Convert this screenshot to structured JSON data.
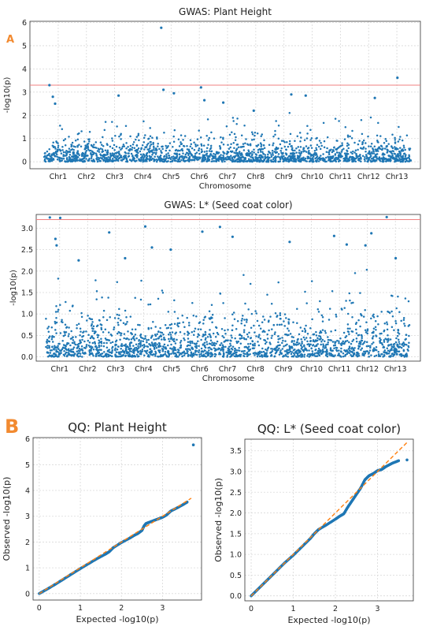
{
  "figure": {
    "panel_a_label": "A",
    "panel_b_label": "B"
  },
  "colors": {
    "points": "#1f77b4",
    "threshold": "#f08080",
    "qq_line": "#ff7f0e",
    "grid": "#d9d9d9",
    "panel_label": "#f28a30"
  },
  "chart_data": [
    {
      "type": "scatter",
      "subtype": "manhattan",
      "title": "GWAS: Plant Height",
      "xlabel": "Chromosome",
      "ylabel": "-log10(p)",
      "categories": [
        "Chr1",
        "Chr2",
        "Chr3",
        "Chr4",
        "Chr5",
        "Chr6",
        "Chr7",
        "Chr8",
        "Chr9",
        "Chr10",
        "Chr11",
        "Chr12",
        "Chr13"
      ],
      "ylim": [
        -0.3,
        6.05
      ],
      "yticks": [
        0,
        1,
        2,
        3,
        4,
        5,
        6
      ],
      "threshold": 3.3,
      "grid": true,
      "notable_points": [
        {
          "chromosome": "Chr5",
          "value": 5.77
        },
        {
          "chromosome": "Chr13",
          "value": 3.62
        },
        {
          "chromosome": "Chr1",
          "value": 3.3
        },
        {
          "chromosome": "Chr6",
          "value": 3.2
        },
        {
          "chromosome": "Chr5",
          "value": 3.1
        },
        {
          "chromosome": "Chr5",
          "value": 2.95
        },
        {
          "chromosome": "Chr10",
          "value": 2.85
        },
        {
          "chromosome": "Chr3",
          "value": 2.85
        },
        {
          "chromosome": "Chr1",
          "value": 2.8
        },
        {
          "chromosome": "Chr6",
          "value": 2.65
        },
        {
          "chromosome": "Chr7",
          "value": 2.55
        },
        {
          "chromosome": "Chr12",
          "value": 2.75
        },
        {
          "chromosome": "Chr1",
          "value": 2.5
        },
        {
          "chromosome": "Chr9",
          "value": 2.9
        },
        {
          "chromosome": "Chr8",
          "value": 2.2
        }
      ],
      "background_max": 2.3
    },
    {
      "type": "scatter",
      "subtype": "manhattan",
      "title": "GWAS: L* (Seed coat color)",
      "xlabel": "Chromosome",
      "ylabel": "-log10(p)",
      "categories": [
        "Chr1",
        "Chr2",
        "Chr3",
        "Chr4",
        "Chr5",
        "Chr6",
        "Chr7",
        "Chr8",
        "Chr9",
        "Chr10",
        "Chr11",
        "Chr12",
        "Chr13"
      ],
      "ylim": [
        -0.1,
        3.32
      ],
      "yticks": [
        0.0,
        0.5,
        1.0,
        1.5,
        2.0,
        2.5,
        3.0
      ],
      "threshold": 3.2,
      "grid": true,
      "notable_points": [
        {
          "chromosome": "Chr1",
          "value": 3.25
        },
        {
          "chromosome": "Chr1",
          "value": 3.24
        },
        {
          "chromosome": "Chr13",
          "value": 3.26
        },
        {
          "chromosome": "Chr4",
          "value": 3.04
        },
        {
          "chromosome": "Chr7",
          "value": 3.03
        },
        {
          "chromosome": "Chr6",
          "value": 2.92
        },
        {
          "chromosome": "Chr3",
          "value": 2.9
        },
        {
          "chromosome": "Chr12",
          "value": 2.88
        },
        {
          "chromosome": "Chr11",
          "value": 2.82
        },
        {
          "chromosome": "Chr7",
          "value": 2.8
        },
        {
          "chromosome": "Chr1",
          "value": 2.75
        },
        {
          "chromosome": "Chr9",
          "value": 2.68
        },
        {
          "chromosome": "Chr1",
          "value": 2.6
        },
        {
          "chromosome": "Chr11",
          "value": 2.62
        },
        {
          "chromosome": "Chr12",
          "value": 2.6
        },
        {
          "chromosome": "Chr4",
          "value": 2.55
        },
        {
          "chromosome": "Chr5",
          "value": 2.5
        },
        {
          "chromosome": "Chr3",
          "value": 2.3
        },
        {
          "chromosome": "Chr13",
          "value": 2.3
        },
        {
          "chromosome": "Chr2",
          "value": 2.25
        }
      ],
      "background_max": 2.05
    },
    {
      "type": "scatter",
      "subtype": "qq",
      "title": "QQ: Plant Height",
      "xlabel": "Expected -log10(p)",
      "ylabel": "Observed -log10(p)",
      "xlim": [
        -0.15,
        3.95
      ],
      "ylim": [
        -0.25,
        6.05
      ],
      "xticks": [
        0,
        1,
        2,
        3
      ],
      "yticks": [
        0,
        1,
        2,
        3,
        4,
        5,
        6
      ],
      "reference_line": {
        "x": [
          0,
          3.7
        ],
        "y": [
          0,
          3.7
        ]
      },
      "points": [
        [
          0.0,
          0.0
        ],
        [
          0.2,
          0.18
        ],
        [
          0.4,
          0.37
        ],
        [
          0.6,
          0.57
        ],
        [
          0.8,
          0.77
        ],
        [
          1.0,
          0.97
        ],
        [
          1.2,
          1.16
        ],
        [
          1.4,
          1.35
        ],
        [
          1.6,
          1.52
        ],
        [
          1.7,
          1.62
        ],
        [
          1.8,
          1.78
        ],
        [
          2.0,
          1.98
        ],
        [
          2.2,
          2.15
        ],
        [
          2.3,
          2.25
        ],
        [
          2.4,
          2.33
        ],
        [
          2.5,
          2.45
        ],
        [
          2.55,
          2.62
        ],
        [
          2.6,
          2.72
        ],
        [
          2.7,
          2.78
        ],
        [
          2.8,
          2.84
        ],
        [
          2.9,
          2.9
        ],
        [
          3.0,
          2.96
        ],
        [
          3.1,
          3.05
        ],
        [
          3.2,
          3.2
        ],
        [
          3.35,
          3.32
        ],
        [
          3.5,
          3.45
        ],
        [
          3.6,
          3.55
        ],
        [
          3.75,
          5.77
        ]
      ]
    },
    {
      "type": "scatter",
      "subtype": "qq",
      "title": "QQ: L* (Seed coat color)",
      "xlabel": "Expected -log10(p)",
      "ylabel": "Observed -log10(p)",
      "xlim": [
        -0.15,
        3.85
      ],
      "ylim": [
        -0.12,
        3.78
      ],
      "xticks": [
        0,
        1,
        2,
        3
      ],
      "yticks": [
        0.0,
        0.5,
        1.0,
        1.5,
        2.0,
        2.5,
        3.0,
        3.5
      ],
      "reference_line": {
        "x": [
          0,
          3.7
        ],
        "y": [
          0,
          3.7
        ]
      },
      "points": [
        [
          0.0,
          0.0
        ],
        [
          0.2,
          0.2
        ],
        [
          0.4,
          0.4
        ],
        [
          0.6,
          0.6
        ],
        [
          0.8,
          0.8
        ],
        [
          1.0,
          0.98
        ],
        [
          1.2,
          1.18
        ],
        [
          1.4,
          1.38
        ],
        [
          1.5,
          1.5
        ],
        [
          1.6,
          1.6
        ],
        [
          1.8,
          1.72
        ],
        [
          2.0,
          1.85
        ],
        [
          2.1,
          1.92
        ],
        [
          2.2,
          1.98
        ],
        [
          2.3,
          2.15
        ],
        [
          2.4,
          2.3
        ],
        [
          2.5,
          2.45
        ],
        [
          2.6,
          2.6
        ],
        [
          2.7,
          2.8
        ],
        [
          2.8,
          2.9
        ],
        [
          2.9,
          2.95
        ],
        [
          3.0,
          3.02
        ],
        [
          3.1,
          3.05
        ],
        [
          3.2,
          3.12
        ],
        [
          3.35,
          3.2
        ],
        [
          3.5,
          3.26
        ],
        [
          3.7,
          3.28
        ]
      ]
    }
  ]
}
